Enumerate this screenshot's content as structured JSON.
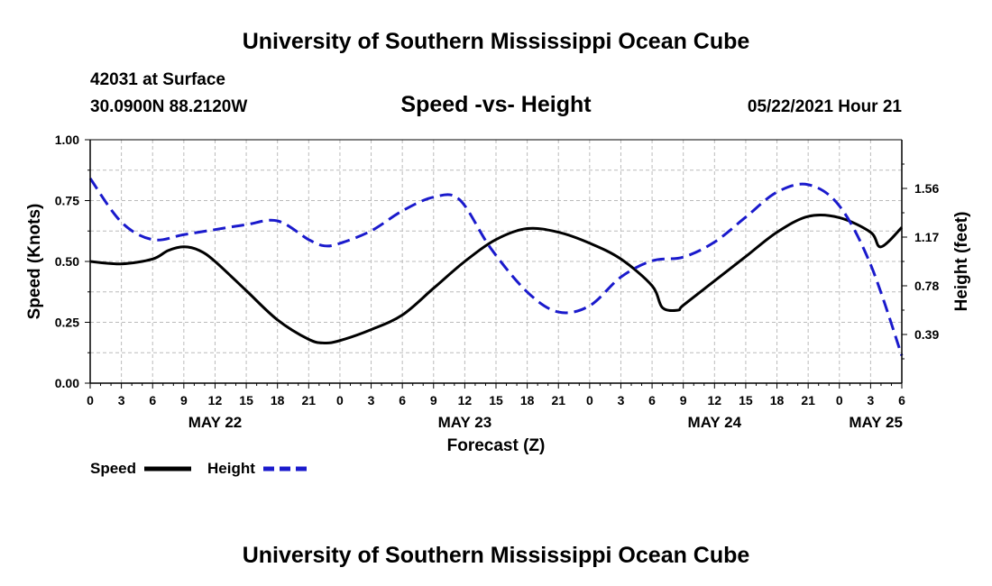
{
  "page": {
    "top_title": "University of Southern Mississippi Ocean Cube",
    "bottom_title": "University of Southern Mississippi Ocean Cube",
    "station": "42031 at Surface",
    "coordinates": "30.0900N  88.2120W",
    "timestamp": "05/22/2021 Hour 21"
  },
  "colors": {
    "speed": "#000000",
    "height": "#1a1acc",
    "grid": "#bbbbbb"
  },
  "chart_data": {
    "type": "line",
    "title": "Speed -vs- Height",
    "xlabel": "Forecast (Z)",
    "ylabel": "Speed (Knots)",
    "y2label": "Height (feet)",
    "xlim": [
      0,
      78
    ],
    "ylim": [
      0,
      1.0
    ],
    "y2lim": [
      0,
      1.95
    ],
    "x_ticks": [
      0,
      3,
      6,
      9,
      12,
      15,
      18,
      21,
      24,
      27,
      30,
      33,
      36,
      39,
      42,
      45,
      48,
      51,
      54,
      57,
      60,
      63,
      66,
      69,
      72,
      75,
      78
    ],
    "x_tick_labels": [
      "0",
      "3",
      "6",
      "9",
      "12",
      "15",
      "18",
      "21",
      "0",
      "3",
      "6",
      "9",
      "12",
      "15",
      "18",
      "21",
      "0",
      "3",
      "6",
      "9",
      "12",
      "15",
      "18",
      "21",
      "0",
      "3",
      "6"
    ],
    "day_labels": [
      {
        "x": 12,
        "label": "MAY 22"
      },
      {
        "x": 36,
        "label": "MAY 23"
      },
      {
        "x": 60,
        "label": "MAY 24"
      },
      {
        "x": 75.5,
        "label": "MAY 25"
      }
    ],
    "y_ticks": [
      0.0,
      0.25,
      0.5,
      0.75,
      1.0
    ],
    "y_tick_labels": [
      "0.00",
      "0.25",
      "0.50",
      "0.75",
      "1.00"
    ],
    "y2_ticks": [
      0.39,
      0.78,
      1.17,
      1.56
    ],
    "y2_tick_labels": [
      "0.39",
      "0.78",
      "1.17",
      "1.56"
    ],
    "series": [
      {
        "name": "Speed",
        "axis": "left",
        "x": [
          0,
          3,
          6,
          7.5,
          9,
          10.5,
          12,
          15,
          18,
          21,
          22.5,
          24,
          27,
          30,
          33,
          36,
          39,
          42,
          45,
          48,
          51,
          54,
          55,
          56.5,
          57,
          60,
          63,
          66,
          69,
          72,
          75,
          76,
          78
        ],
        "values": [
          0.5,
          0.49,
          0.51,
          0.545,
          0.56,
          0.545,
          0.5,
          0.38,
          0.26,
          0.18,
          0.165,
          0.175,
          0.22,
          0.28,
          0.39,
          0.5,
          0.59,
          0.635,
          0.62,
          0.575,
          0.51,
          0.4,
          0.31,
          0.3,
          0.32,
          0.42,
          0.52,
          0.62,
          0.685,
          0.68,
          0.62,
          0.56,
          0.64
        ],
        "y_source_extra_note": ""
      },
      {
        "name": "Height",
        "axis": "right",
        "x": [
          0,
          3,
          6,
          9,
          12,
          15,
          18,
          21,
          22.5,
          24,
          27,
          30,
          33,
          35.5,
          38.5,
          42,
          45,
          48,
          51,
          54,
          57,
          60,
          63,
          66,
          69,
          72,
          75,
          78
        ],
        "values": [
          1.64,
          1.29,
          1.15,
          1.19,
          1.23,
          1.27,
          1.3,
          1.15,
          1.1,
          1.12,
          1.22,
          1.38,
          1.49,
          1.47,
          1.08,
          0.73,
          0.57,
          0.62,
          0.85,
          0.98,
          1.01,
          1.13,
          1.33,
          1.53,
          1.59,
          1.42,
          0.95,
          0.22
        ]
      }
    ],
    "legend": [
      {
        "label": "Speed",
        "series": 0
      },
      {
        "label": "Height",
        "series": 1
      }
    ]
  }
}
